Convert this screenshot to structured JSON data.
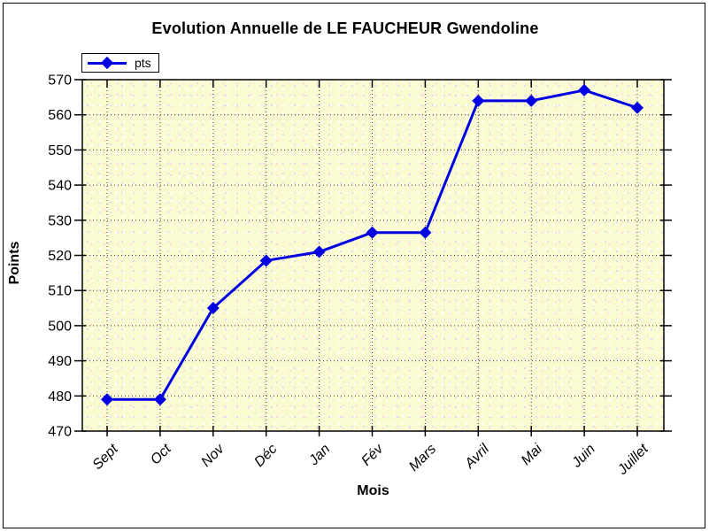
{
  "window": {
    "background": "#ffffff",
    "frame_border_color": "#000000"
  },
  "chart_data": {
    "type": "line",
    "title": "Evolution Annuelle de LE FAUCHEUR Gwendoline",
    "xlabel": "Mois",
    "ylabel": "Points",
    "categories": [
      "Sept",
      "Oct",
      "Nov",
      "Déc",
      "Jan",
      "Fév",
      "Mars",
      "Avril",
      "Mai",
      "Juin",
      "Juillet"
    ],
    "series": [
      {
        "name": "pts",
        "color": "#0000e0",
        "marker": "diamond",
        "values": [
          479,
          479,
          505,
          518.5,
          521,
          526.5,
          526.5,
          564,
          564,
          567,
          562
        ]
      }
    ],
    "ylim": [
      470,
      570
    ],
    "ytick_step": 10,
    "grid": true,
    "grid_style": "dotted",
    "legend_position": "top-left",
    "plot_bg": "#fbfbd2",
    "tick_label_rotation_deg": -45
  }
}
